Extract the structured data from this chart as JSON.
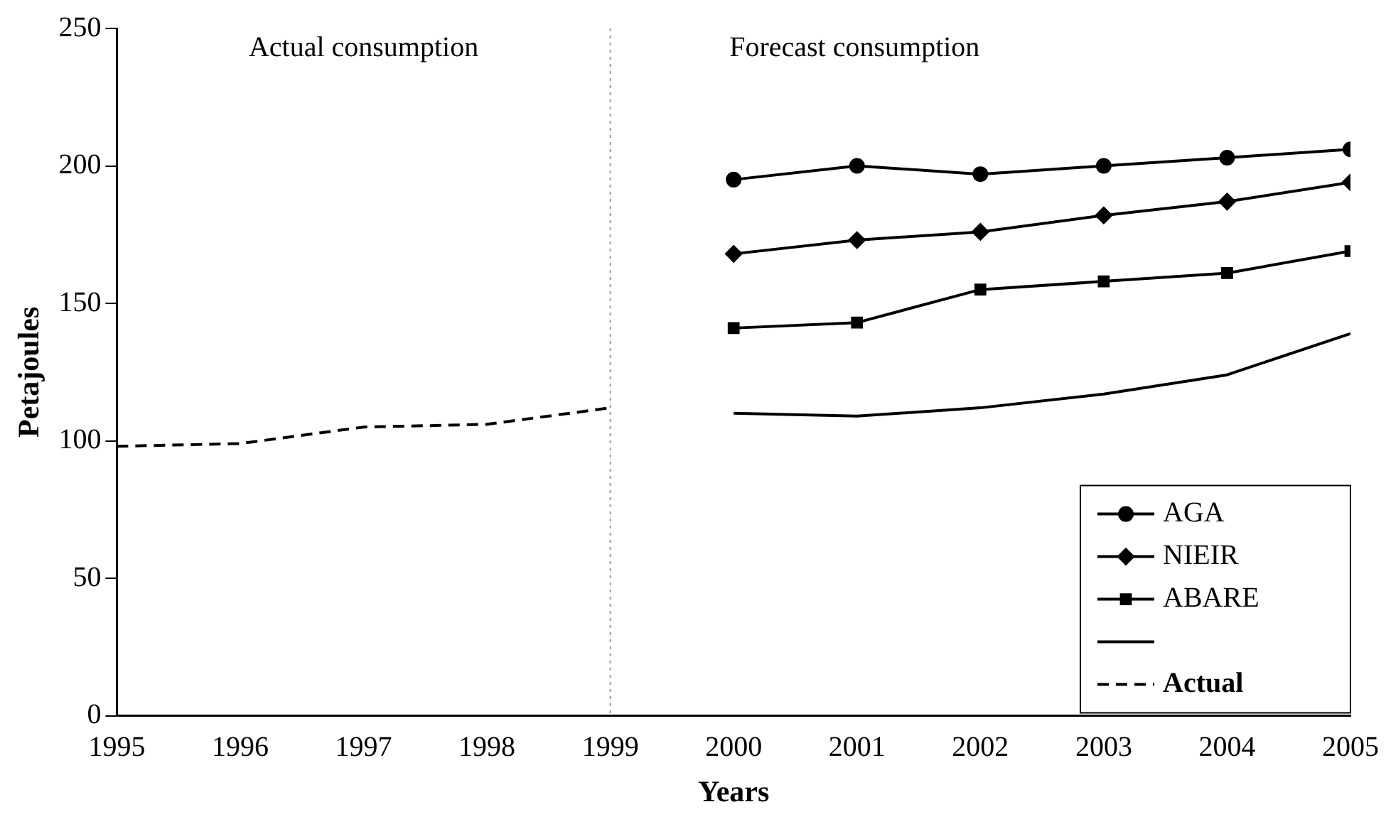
{
  "chart_data": {
    "type": "line",
    "xlabel": "Years",
    "ylabel": "Petajoules",
    "xlim": [
      1995,
      2005
    ],
    "xticks": [
      1995,
      1996,
      1997,
      1998,
      1999,
      2000,
      2001,
      2002,
      2003,
      2004,
      2005
    ],
    "ylim": [
      0,
      250
    ],
    "yticks": [
      0,
      50,
      100,
      150,
      200,
      250
    ],
    "grid": false,
    "legend": "bottom right",
    "annotations": [
      "Actual consumption",
      "Forecast consumption"
    ],
    "ref_lines": [
      {
        "axis": "x",
        "value": 1999,
        "color": "#999999",
        "line_style": "dotted"
      }
    ],
    "series": [
      {
        "name": "AGA",
        "color": "#000000",
        "marker": "circle",
        "line_style": "solid",
        "x": [
          2000,
          2001,
          2002,
          2003,
          2004,
          2005
        ],
        "values": [
          195,
          200,
          197,
          200,
          203,
          206
        ]
      },
      {
        "name": "NIEIR",
        "color": "#000000",
        "marker": "diamond",
        "line_style": "solid",
        "x": [
          2000,
          2001,
          2002,
          2003,
          2004,
          2005
        ],
        "values": [
          168,
          173,
          176,
          182,
          187,
          194
        ]
      },
      {
        "name": "ABARE",
        "color": "#000000",
        "marker": "square",
        "line_style": "solid",
        "x": [
          2000,
          2001,
          2002,
          2003,
          2004,
          2005
        ],
        "values": [
          141,
          143,
          155,
          158,
          161,
          169
        ]
      },
      {
        "color": "#000000",
        "marker": "none",
        "line_style": "solid",
        "x": [
          2000,
          2001,
          2002,
          2003,
          2004,
          2005
        ],
        "values": [
          110,
          109,
          112,
          117,
          124,
          139
        ]
      },
      {
        "name": "Actual",
        "color": "#000000",
        "marker": "none",
        "line_style": "dashed",
        "x": [
          1995,
          1996,
          1997,
          1998,
          1999
        ],
        "values": [
          98,
          99,
          105,
          106,
          112
        ]
      }
    ]
  }
}
